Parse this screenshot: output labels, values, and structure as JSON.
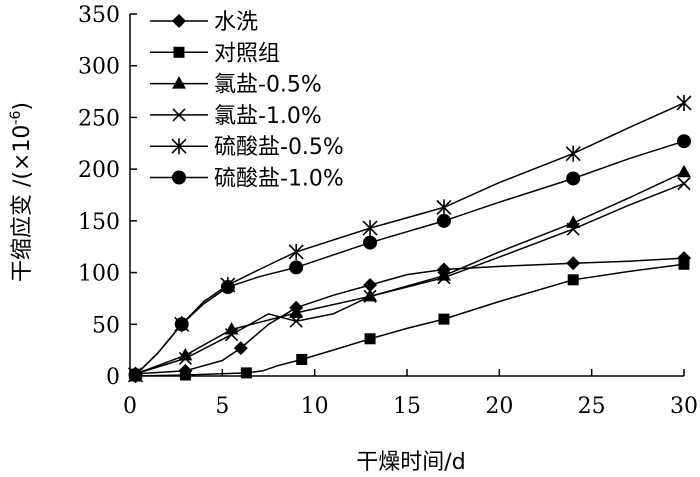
{
  "chart_data": {
    "type": "line",
    "title": "",
    "xlabel": "干燥时间/d",
    "ylabel": "干缩应变 /(×10",
    "ylabel_exp": "-6",
    "ylabel_close": ")",
    "xlim": [
      0,
      30
    ],
    "ylim": [
      0,
      350
    ],
    "xticks": [
      0,
      5,
      10,
      15,
      20,
      25,
      30
    ],
    "yticks": [
      0,
      50,
      100,
      150,
      200,
      250,
      300,
      350
    ],
    "grid": false,
    "legend_position": "top-left",
    "series": [
      {
        "name": "水洗",
        "marker": "diamond",
        "x": [
          0.3,
          3,
          6,
          9,
          13,
          17,
          24,
          30
        ],
        "y": [
          2,
          5,
          27,
          66,
          88,
          103,
          109,
          114
        ],
        "line_x": [
          0.3,
          3,
          5,
          6,
          7.5,
          9,
          11,
          13,
          15,
          17,
          20,
          24,
          27,
          30
        ],
        "line_y": [
          2,
          5,
          15,
          27,
          50,
          66,
          78,
          88,
          98,
          103,
          106,
          109,
          111,
          114
        ]
      },
      {
        "name": "对照组",
        "marker": "square",
        "x": [
          0.3,
          3,
          6.3,
          9.3,
          13,
          17,
          24,
          30
        ],
        "y": [
          0,
          1,
          3,
          16,
          36,
          55,
          93,
          108
        ],
        "line_x": [
          0.3,
          3,
          6.3,
          7.2,
          8,
          9.3,
          11,
          13,
          15,
          17,
          20,
          24,
          27,
          30
        ],
        "line_y": [
          0,
          1,
          3,
          5,
          10,
          16,
          25,
          36,
          46,
          55,
          72,
          93,
          101,
          108
        ]
      },
      {
        "name": "氯盐-0.5%",
        "marker": "triangle",
        "x": [
          0.3,
          3,
          5.5,
          9,
          13,
          17,
          24,
          30
        ],
        "y": [
          2,
          20,
          45,
          61,
          77,
          97,
          148,
          197
        ],
        "line_x": [
          0.3,
          3,
          5.5,
          9,
          13,
          17,
          20,
          24,
          27,
          30
        ],
        "line_y": [
          2,
          20,
          45,
          61,
          77,
          97,
          120,
          148,
          172,
          197
        ]
      },
      {
        "name": "氯盐-1.0%",
        "marker": "x",
        "x": [
          0.3,
          3,
          5.5,
          9,
          13,
          17,
          24,
          30
        ],
        "y": [
          2,
          17,
          40,
          53,
          77,
          95,
          142,
          186
        ],
        "line_x": [
          0.3,
          3,
          5.5,
          7.5,
          9,
          11,
          13,
          17,
          20,
          24,
          27,
          30
        ],
        "line_y": [
          2,
          17,
          40,
          60,
          53,
          60,
          77,
          95,
          115,
          142,
          165,
          186
        ]
      },
      {
        "name": "硫酸盐-0.5%",
        "marker": "asterisk",
        "x": [
          0.3,
          2.8,
          5.3,
          9,
          13,
          17,
          24,
          30
        ],
        "y": [
          1,
          50,
          88,
          120,
          143,
          163,
          215,
          264
        ],
        "line_x": [
          0.3,
          1.5,
          2.8,
          4,
          5.3,
          7,
          9,
          13,
          17,
          20,
          24,
          27,
          30
        ],
        "line_y": [
          1,
          22,
          50,
          72,
          88,
          103,
          120,
          143,
          163,
          187,
          215,
          240,
          264
        ]
      },
      {
        "name": "硫酸盐-1.0%",
        "marker": "circle",
        "x": [
          0.3,
          2.8,
          5.3,
          9,
          13,
          17,
          24,
          30
        ],
        "y": [
          1,
          50,
          86,
          105,
          129,
          150,
          191,
          227
        ],
        "line_x": [
          0.3,
          1.5,
          2.8,
          4,
          5.3,
          7,
          9,
          13,
          17,
          20,
          24,
          27,
          30
        ],
        "line_y": [
          1,
          22,
          50,
          70,
          86,
          96,
          105,
          129,
          150,
          168,
          191,
          210,
          227
        ]
      }
    ]
  }
}
